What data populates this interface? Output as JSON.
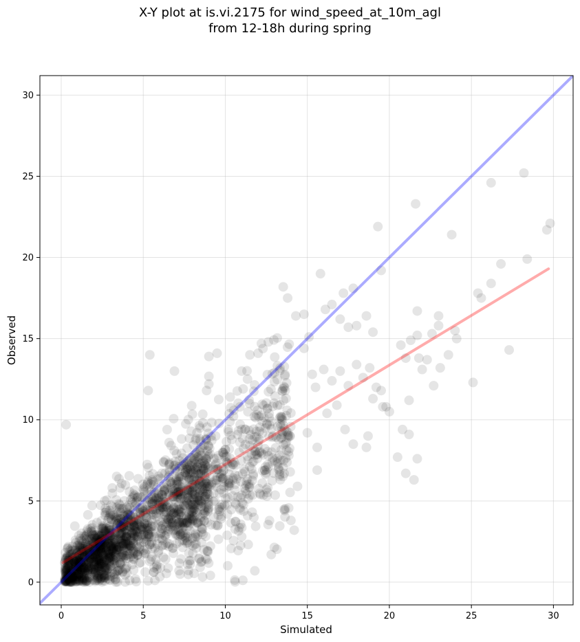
{
  "chart_data": {
    "type": "scatter",
    "title_line1": "X-Y plot at is.vi.2175 for wind_speed_at_10m_agl",
    "title_line2": "from 12-18h during spring",
    "xlabel": "Simulated",
    "ylabel": "Observed",
    "xlim": [
      -1.3,
      31.2
    ],
    "ylim": [
      -1.4,
      31.2
    ],
    "xticks": [
      0,
      5,
      10,
      15,
      20,
      25,
      30
    ],
    "yticks": [
      0,
      5,
      10,
      15,
      20,
      25,
      30
    ],
    "grid": true,
    "point_color": "#000000",
    "identity_line": {
      "color": "#0000ff",
      "x": [
        -1.3,
        31.2
      ],
      "y": [
        -1.3,
        31.2
      ]
    },
    "fit_line": {
      "color": "#ff0000",
      "x": [
        0.1,
        29.7
      ],
      "y": [
        1.2,
        19.3
      ]
    },
    "outlier_points": [
      [
        0.3,
        9.7
      ],
      [
        5.4,
        14.0
      ],
      [
        5.3,
        11.8
      ],
      [
        6.9,
        13.0
      ],
      [
        9.0,
        13.9
      ],
      [
        9.5,
        14.1
      ],
      [
        9.0,
        12.2
      ],
      [
        10.3,
        11.4
      ],
      [
        11.0,
        13.0
      ],
      [
        11.5,
        14.0
      ],
      [
        12.0,
        14.1
      ],
      [
        12.2,
        14.7
      ],
      [
        13.0,
        12.9
      ],
      [
        13.8,
        17.5
      ],
      [
        14.3,
        16.4
      ],
      [
        14.8,
        16.5
      ],
      [
        14.8,
        14.4
      ],
      [
        15.1,
        15.1
      ],
      [
        15.8,
        19.0
      ],
      [
        16.1,
        16.8
      ],
      [
        16.5,
        17.1
      ],
      [
        17.0,
        16.2
      ],
      [
        17.2,
        17.8
      ],
      [
        17.5,
        15.7
      ],
      [
        17.8,
        18.1
      ],
      [
        18.0,
        15.8
      ],
      [
        18.6,
        16.4
      ],
      [
        19.0,
        15.4
      ],
      [
        19.3,
        21.9
      ],
      [
        19.5,
        19.2
      ],
      [
        15.3,
        12.8
      ],
      [
        15.5,
        12.0
      ],
      [
        16.0,
        13.1
      ],
      [
        16.5,
        12.4
      ],
      [
        17.0,
        13.0
      ],
      [
        17.5,
        12.1
      ],
      [
        18.0,
        13.4
      ],
      [
        18.4,
        12.6
      ],
      [
        18.8,
        13.2
      ],
      [
        19.2,
        12.0
      ],
      [
        19.5,
        11.8
      ],
      [
        19.8,
        10.8
      ],
      [
        20.0,
        10.5
      ],
      [
        15.0,
        9.2
      ],
      [
        15.6,
        8.3
      ],
      [
        16.2,
        10.4
      ],
      [
        16.8,
        10.9
      ],
      [
        17.3,
        9.4
      ],
      [
        17.8,
        8.5
      ],
      [
        18.6,
        8.3
      ],
      [
        18.7,
        9.0
      ],
      [
        19.0,
        11.3
      ],
      [
        19.6,
        10.8
      ],
      [
        15.6,
        6.9
      ],
      [
        14.4,
        5.9
      ],
      [
        14.2,
        3.2
      ],
      [
        11.8,
        0.7
      ],
      [
        11.0,
        2.8
      ],
      [
        12.8,
        1.7
      ],
      [
        20.5,
        7.7
      ],
      [
        20.8,
        9.4
      ],
      [
        21.0,
        6.7
      ],
      [
        21.2,
        9.1
      ],
      [
        21.2,
        11.2
      ],
      [
        21.5,
        6.3
      ],
      [
        21.7,
        7.6
      ],
      [
        20.7,
        14.6
      ],
      [
        21.0,
        13.8
      ],
      [
        21.3,
        14.9
      ],
      [
        21.7,
        15.2
      ],
      [
        21.8,
        13.8
      ],
      [
        21.7,
        16.7
      ],
      [
        22.0,
        13.1
      ],
      [
        22.3,
        13.7
      ],
      [
        22.6,
        15.3
      ],
      [
        22.7,
        12.1
      ],
      [
        23.0,
        15.8
      ],
      [
        23.0,
        16.4
      ],
      [
        23.1,
        13.2
      ],
      [
        23.6,
        14.0
      ],
      [
        24.0,
        15.5
      ],
      [
        24.1,
        15.0
      ],
      [
        21.6,
        23.3
      ],
      [
        23.8,
        21.4
      ],
      [
        25.1,
        12.3
      ],
      [
        25.4,
        17.8
      ],
      [
        25.6,
        17.5
      ],
      [
        26.2,
        24.6
      ],
      [
        26.2,
        18.4
      ],
      [
        26.8,
        19.6
      ],
      [
        27.3,
        14.3
      ],
      [
        28.2,
        25.2
      ],
      [
        28.4,
        19.9
      ],
      [
        29.6,
        21.7
      ],
      [
        29.8,
        22.1
      ]
    ],
    "cluster_note_count": 2200
  }
}
